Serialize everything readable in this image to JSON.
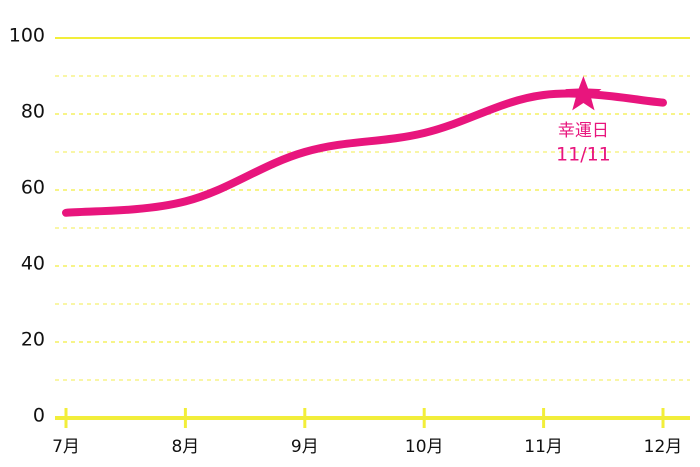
{
  "chart_data": {
    "type": "line",
    "categories": [
      "7月",
      "8月",
      "9月",
      "10月",
      "11月",
      "12月"
    ],
    "values": [
      54,
      57,
      70,
      75,
      85,
      83
    ],
    "color": "#e8157d",
    "ylim": [
      0,
      100
    ],
    "yticks": [
      0,
      20,
      40,
      60,
      80,
      100
    ],
    "minor_yticks": [
      10,
      30,
      50,
      70,
      90
    ],
    "grid": true,
    "grid_color": "#f2ee3a",
    "annotation": {
      "label": "幸運日",
      "date": "11/11",
      "value": 85
    }
  }
}
